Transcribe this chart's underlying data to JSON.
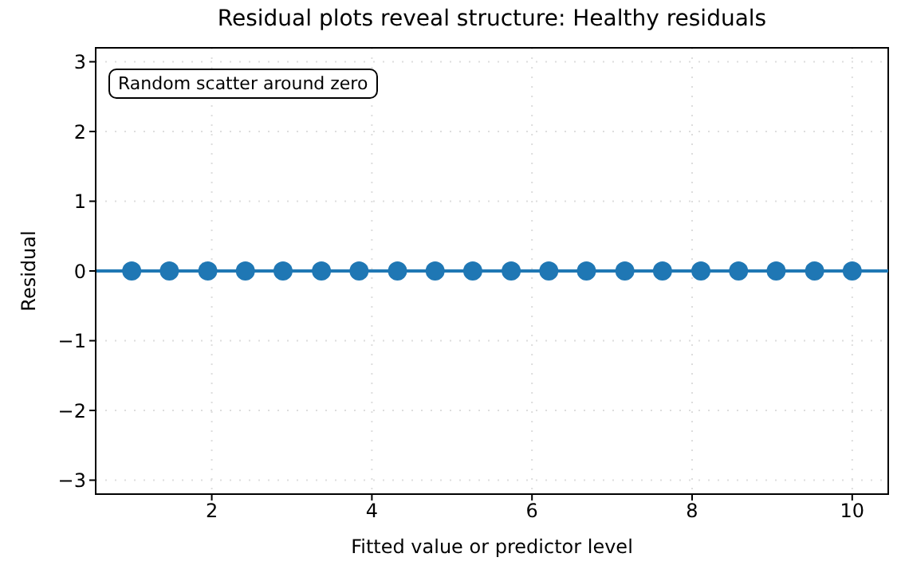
{
  "chart_data": {
    "type": "scatter",
    "title": "Residual plots reveal structure: Healthy residuals",
    "xlabel": "Fitted value or predictor level",
    "ylabel": "Residual",
    "x": [
      1,
      1.47,
      1.95,
      2.42,
      2.89,
      3.37,
      3.84,
      4.32,
      4.79,
      5.26,
      5.74,
      6.21,
      6.68,
      7.16,
      7.63,
      8.11,
      8.58,
      9.05,
      9.53,
      10
    ],
    "series": [
      {
        "color": "#1f77b4",
        "values": [
          0,
          0,
          0,
          0,
          0,
          0,
          0,
          0,
          0,
          0,
          0,
          0,
          0,
          0,
          0,
          0,
          0,
          0,
          0,
          0
        ]
      }
    ],
    "marker": "circle",
    "xlim": [
      0.55,
      10.45
    ],
    "xticks": [
      2,
      4,
      6,
      8,
      10
    ],
    "ylim": [
      -3.2,
      3.2
    ],
    "yticks": [
      {
        "value": -3,
        "label": "−3"
      },
      {
        "value": -2,
        "label": "−2"
      },
      {
        "value": -1,
        "label": "−1"
      },
      0,
      1,
      2,
      3
    ],
    "ref_lines": [
      {
        "axis": "y",
        "value": 0,
        "color": "#1f77b4",
        "line_style": "solid"
      }
    ],
    "grid": true,
    "annotations": [
      "Random scatter around zero"
    ]
  }
}
